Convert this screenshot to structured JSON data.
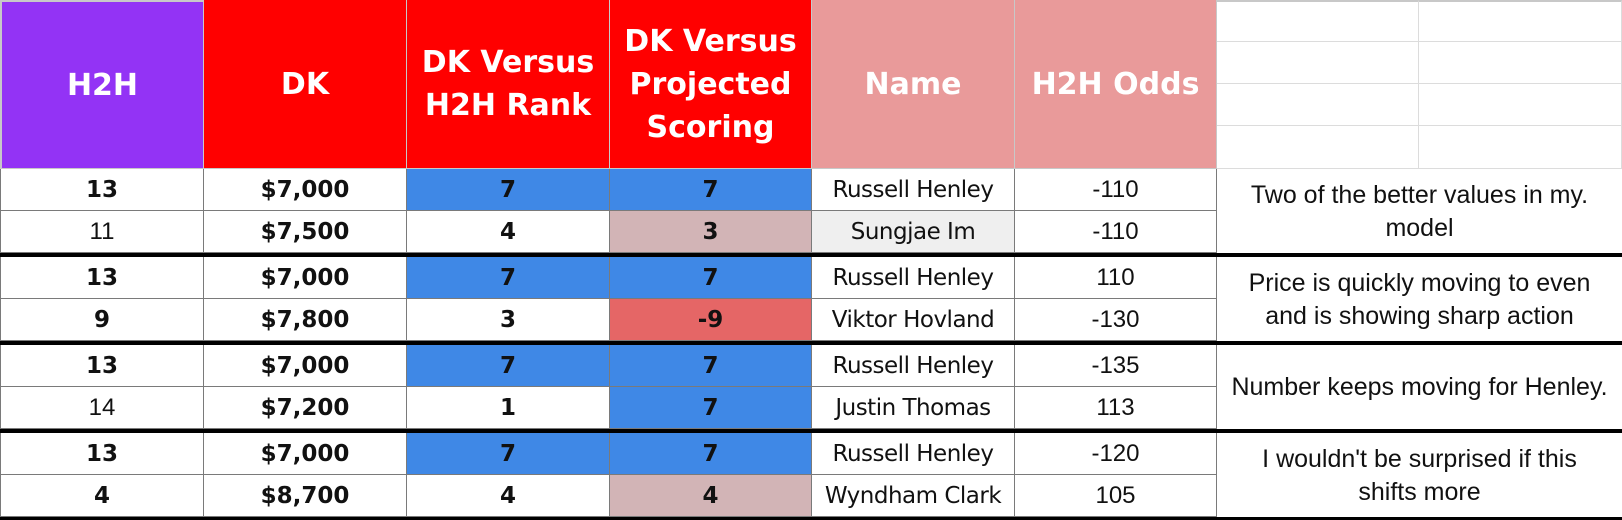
{
  "headers": {
    "h2h": "H2H",
    "dk": "DK",
    "dk_vs_rank": "DK Versus H2H Rank",
    "dk_vs_proj": "DK Versus Projected Scoring",
    "name": "Name",
    "odds": "H2H Odds"
  },
  "groups": [
    {
      "note": "Two of the better values in my. model",
      "rows": [
        {
          "h2h": "13",
          "dk": "$7,000",
          "rank": "7",
          "proj": "7",
          "name": "Russell Henley",
          "odds": "-110",
          "h2h_bold": true,
          "rank_color": "blue",
          "proj_color": "blue",
          "name_color": "none"
        },
        {
          "h2h": "11",
          "dk": "$7,500",
          "rank": "4",
          "proj": "3",
          "name": "Sungjae Im",
          "odds": "-110",
          "h2h_bold": false,
          "rank_color": "none",
          "proj_color": "mauve",
          "name_color": "grey"
        }
      ]
    },
    {
      "note": "Price is quickly moving to even and is showing sharp action",
      "rows": [
        {
          "h2h": "13",
          "dk": "$7,000",
          "rank": "7",
          "proj": "7",
          "name": "Russell Henley",
          "odds": "110",
          "h2h_bold": true,
          "rank_color": "blue",
          "proj_color": "blue",
          "name_color": "none"
        },
        {
          "h2h": "9",
          "dk": "$7,800",
          "rank": "3",
          "proj": "-9",
          "name": "Viktor Hovland",
          "odds": "-130",
          "h2h_bold": true,
          "rank_color": "none",
          "proj_color": "red",
          "name_color": "none"
        }
      ]
    },
    {
      "note": "Number keeps moving for Henley.",
      "rows": [
        {
          "h2h": "13",
          "dk": "$7,000",
          "rank": "7",
          "proj": "7",
          "name": "Russell Henley",
          "odds": "-135",
          "h2h_bold": true,
          "rank_color": "blue",
          "proj_color": "blue",
          "name_color": "none"
        },
        {
          "h2h": "14",
          "dk": "$7,200",
          "rank": "1",
          "proj": "7",
          "name": "Justin Thomas",
          "odds": "113",
          "h2h_bold": false,
          "rank_color": "none",
          "proj_color": "blue",
          "name_color": "none"
        }
      ]
    },
    {
      "note": "I wouldn't be surprised if this shifts more",
      "rows": [
        {
          "h2h": "13",
          "dk": "$7,000",
          "rank": "7",
          "proj": "7",
          "name": "Russell Henley",
          "odds": "-120",
          "h2h_bold": true,
          "rank_color": "blue",
          "proj_color": "blue",
          "name_color": "none"
        },
        {
          "h2h": "4",
          "dk": "$8,700",
          "rank": "4",
          "proj": "4",
          "name": "Wyndham Clark",
          "odds": "105",
          "h2h_bold": true,
          "rank_color": "none",
          "proj_color": "mauve",
          "name_color": "none"
        }
      ]
    }
  ]
}
